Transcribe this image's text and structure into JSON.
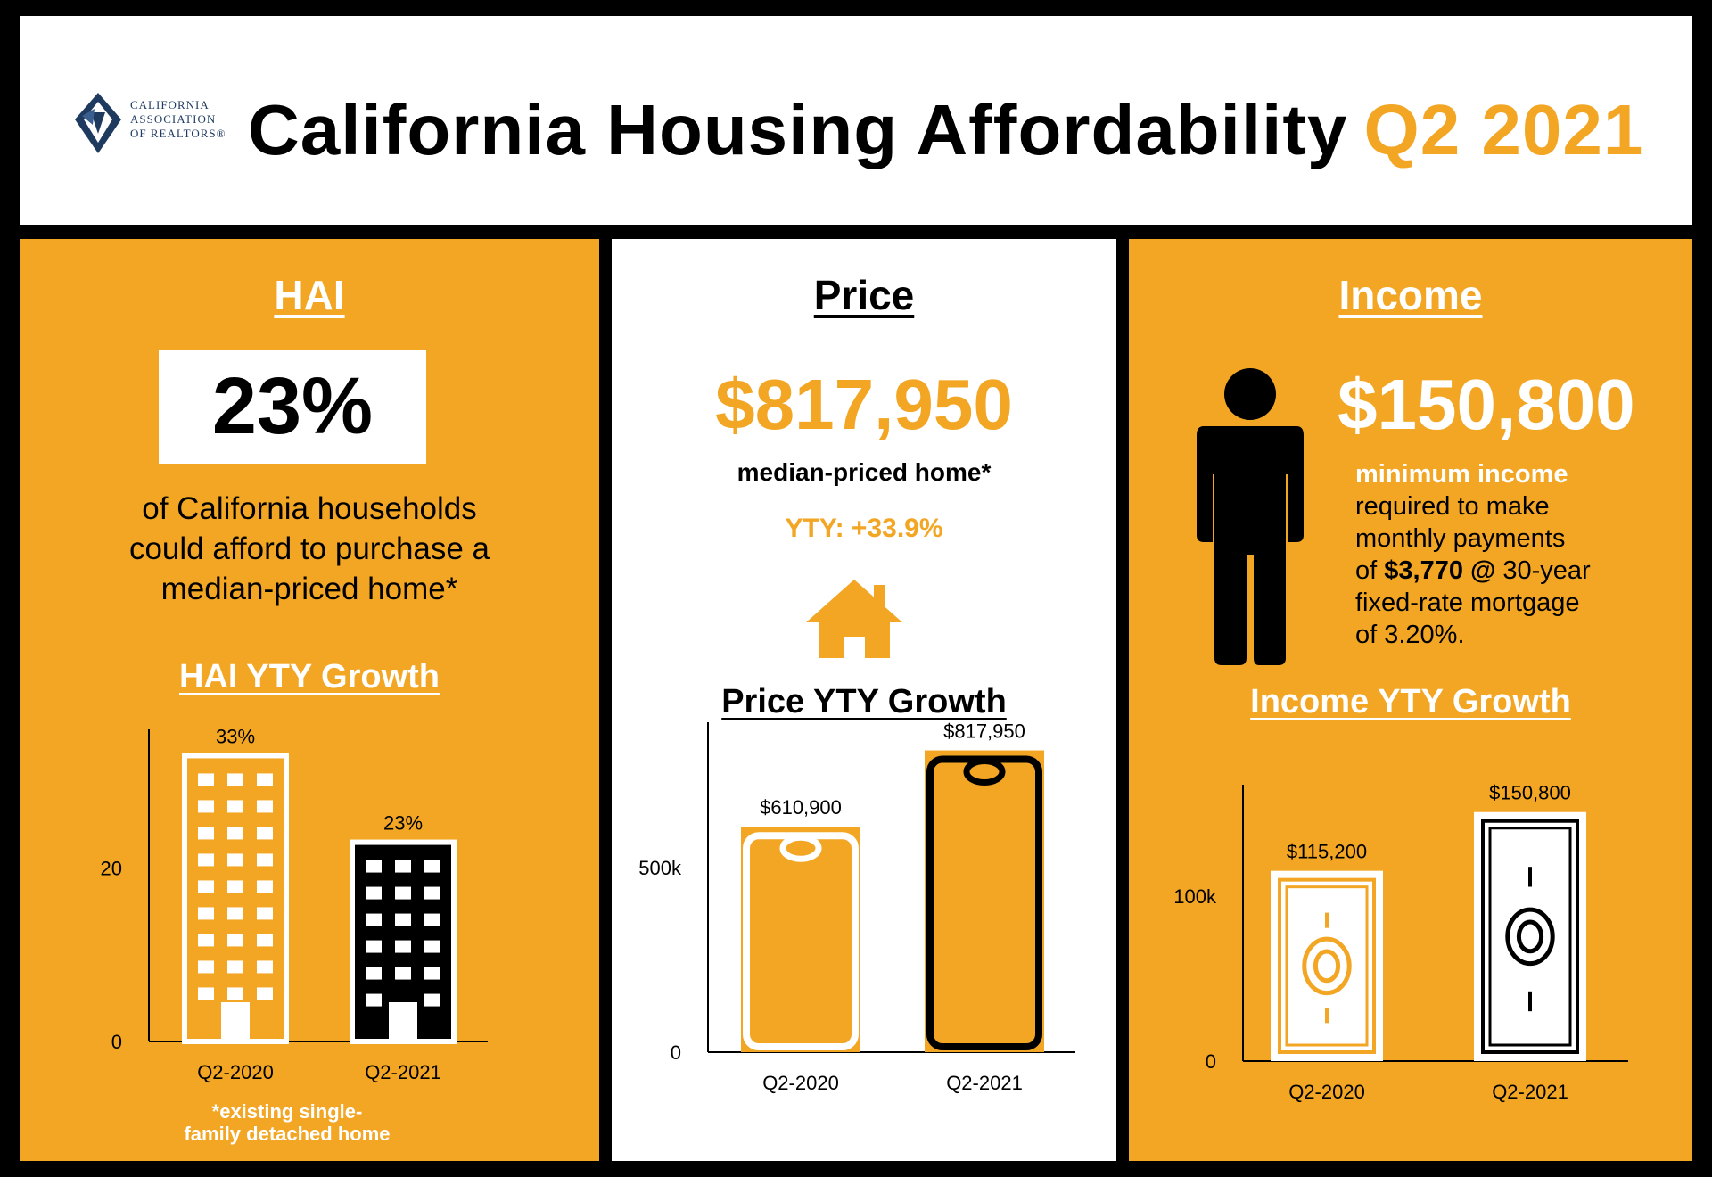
{
  "header": {
    "logo_lines": [
      "CALIFORNIA",
      "ASSOCIATION",
      "OF REALTORS®"
    ],
    "title": "California Housing Affordability",
    "quarter": "Q2 2021"
  },
  "hai": {
    "title": "HAI",
    "value": "23%",
    "description_lines": [
      "of California households",
      "could afford to purchase a",
      "median-priced home*"
    ],
    "chart_title": "HAI YTY Growth",
    "footnote_lines": [
      "*existing single-",
      "family detached home"
    ]
  },
  "price": {
    "title": "Price",
    "value": "$817,950",
    "label": "median-priced home*",
    "yty": "YTY: +33.9%",
    "chart_title": "Price YTY Growth"
  },
  "income": {
    "title": "Income",
    "value": "$150,800",
    "line1": "minimum income",
    "line2": "required to make",
    "line3": "monthly payments",
    "line4_pre": "of ",
    "line4_bold": "$3,770 @",
    "line4_post": " 30-year",
    "line5": "fixed-rate mortgage",
    "line6": "of 3.20%.",
    "chart_title": "Income YTY Growth"
  },
  "colors": {
    "gold": "#f2a624",
    "black": "#000000",
    "white": "#ffffff",
    "navy": "#1f3a5f"
  },
  "chart_data": [
    {
      "type": "bar",
      "title": "HAI YTY Growth",
      "categories": [
        "Q2-2020",
        "Q2-2021"
      ],
      "values": [
        33,
        23
      ],
      "value_labels": [
        "33%",
        "23%"
      ],
      "yticks": [
        0,
        20
      ],
      "ylim": [
        0,
        35
      ],
      "ylabel": "",
      "xlabel": ""
    },
    {
      "type": "bar",
      "title": "Price YTY Growth",
      "categories": [
        "Q2-2020",
        "Q2-2021"
      ],
      "values": [
        610900,
        817950
      ],
      "value_labels": [
        "$610,900",
        "$817,950"
      ],
      "yticks": [
        0,
        500000
      ],
      "ytick_labels": [
        "0",
        "500k"
      ],
      "ylim": [
        0,
        870000
      ],
      "ylabel": "",
      "xlabel": ""
    },
    {
      "type": "bar",
      "title": "Income YTY Growth",
      "categories": [
        "Q2-2020",
        "Q2-2021"
      ],
      "values": [
        115200,
        150800
      ],
      "value_labels": [
        "$115,200",
        "$150,800"
      ],
      "yticks": [
        0,
        100000
      ],
      "ytick_labels": [
        "0",
        "100k"
      ],
      "ylim": [
        0,
        162000
      ],
      "ylabel": "",
      "xlabel": ""
    }
  ]
}
